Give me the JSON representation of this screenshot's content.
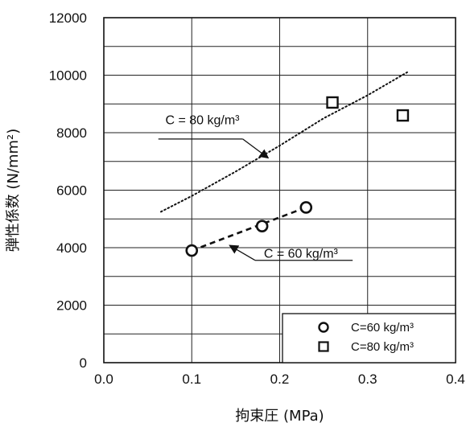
{
  "chart_data": {
    "type": "scatter",
    "title": "",
    "xlabel": "拘束圧 (MPa)",
    "ylabel": "弾性係数 (N/mm²)",
    "xlim": [
      0.0,
      0.4
    ],
    "ylim": [
      0,
      12000
    ],
    "x_ticks": [
      "0.0",
      "0.1",
      "0.2",
      "0.3",
      "0.4"
    ],
    "y_ticks": [
      "0",
      "2000",
      "4000",
      "6000",
      "8000",
      "10000",
      "12000"
    ],
    "grid": true,
    "legend_position": "bottom-right",
    "series": [
      {
        "name": "C=60 kg/m³",
        "marker": "circle",
        "points": [
          {
            "x": 0.1,
            "y": 3900
          },
          {
            "x": 0.18,
            "y": 4750
          },
          {
            "x": 0.23,
            "y": 5400
          }
        ]
      },
      {
        "name": "C=80 kg/m³",
        "marker": "square",
        "points": [
          {
            "x": 0.26,
            "y": 9050
          },
          {
            "x": 0.34,
            "y": 8600
          }
        ]
      }
    ],
    "fit_lines": [
      {
        "label": "C = 80 kg/m³",
        "style": "dotted",
        "points": [
          {
            "x": 0.065,
            "y": 5250
          },
          {
            "x": 0.1,
            "y": 5800
          },
          {
            "x": 0.15,
            "y": 6650
          },
          {
            "x": 0.2,
            "y": 7550
          },
          {
            "x": 0.25,
            "y": 8500
          },
          {
            "x": 0.3,
            "y": 9300
          },
          {
            "x": 0.345,
            "y": 10100
          }
        ]
      },
      {
        "label": "C = 60 kg/m³",
        "style": "dashed",
        "points": [
          {
            "x": 0.1,
            "y": 3900
          },
          {
            "x": 0.23,
            "y": 5400
          }
        ]
      }
    ],
    "annotations": [
      {
        "text": "C = 80 kg/m³",
        "x": 0.07,
        "y": 8300
      },
      {
        "text": "C = 60 kg/m³",
        "x": 0.182,
        "y": 3650
      }
    ]
  }
}
